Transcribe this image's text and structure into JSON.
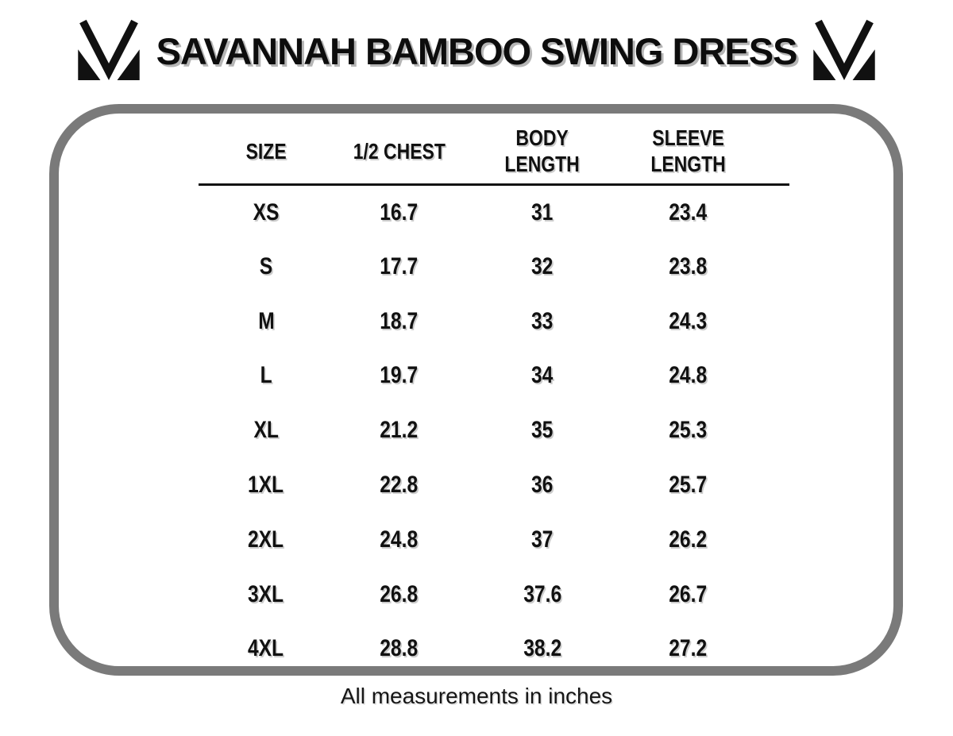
{
  "header": {
    "title": "SAVANNAH BAMBOO SWING DRESS",
    "logo_icon": "m-brand-logo"
  },
  "colors": {
    "text": "#111111",
    "box_border_gray": "#7a7a7a",
    "title_shadow": "#b5b5b5",
    "table_text_shadow": "#cccccc"
  },
  "footer": {
    "note": "All measurements in inches"
  },
  "chart_data": {
    "type": "table",
    "title": "SAVANNAH BAMBOO SWING DRESS",
    "columns": [
      "SIZE",
      "1/2 CHEST",
      "BODY\nLENGTH",
      "SLEEVE\nLENGTH"
    ],
    "rows": [
      [
        "XS",
        "16.7",
        "31",
        "23.4"
      ],
      [
        "S",
        "17.7",
        "32",
        "23.8"
      ],
      [
        "M",
        "18.7",
        "33",
        "24.3"
      ],
      [
        "L",
        "19.7",
        "34",
        "24.8"
      ],
      [
        "XL",
        "21.2",
        "35",
        "25.3"
      ],
      [
        "1XL",
        "22.8",
        "36",
        "25.7"
      ],
      [
        "2XL",
        "24.8",
        "37",
        "26.2"
      ],
      [
        "3XL",
        "26.8",
        "37.6",
        "26.7"
      ],
      [
        "4XL",
        "28.8",
        "38.2",
        "27.2"
      ]
    ],
    "footnote": "All measurements in inches",
    "units": "inches",
    "layout": {
      "header_rule": true,
      "grid": false
    }
  }
}
